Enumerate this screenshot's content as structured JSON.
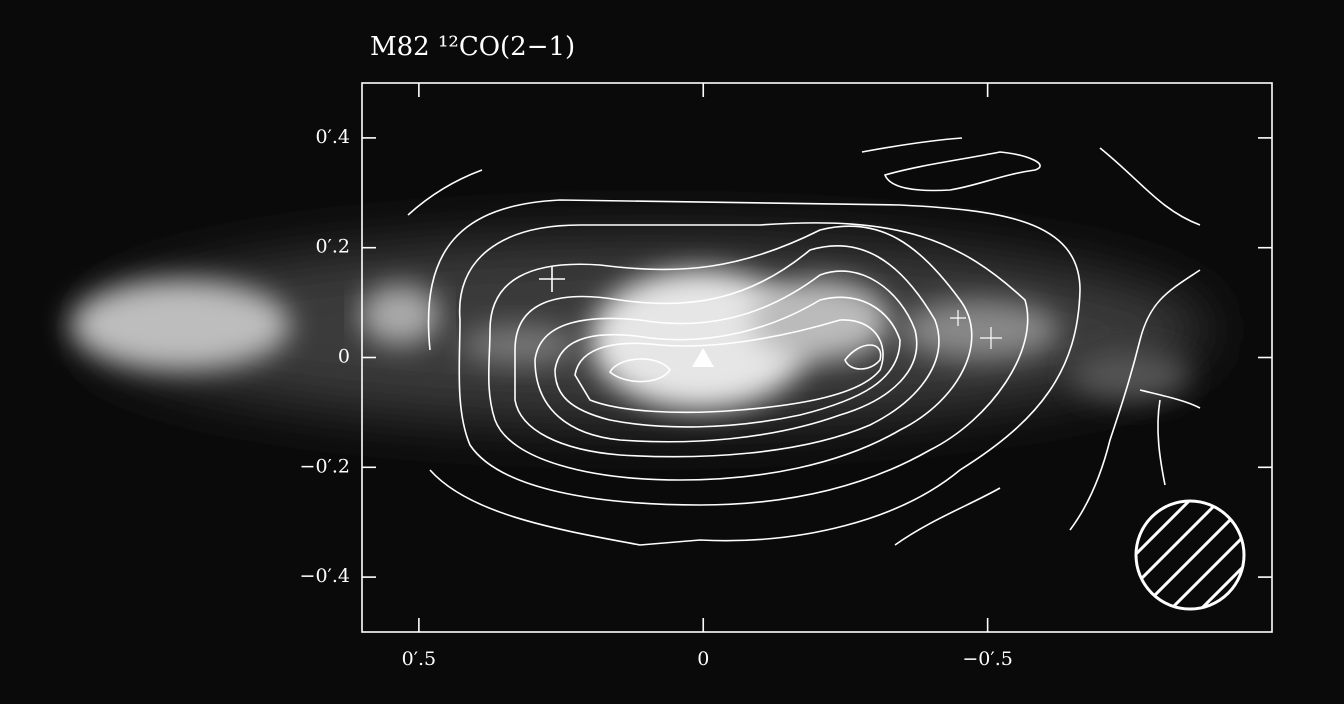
{
  "chart_data": {
    "type": "contour",
    "title": "M82 ¹²CO(2−1)",
    "xlim": [
      0.6,
      -1.0
    ],
    "ylim": [
      -0.5,
      0.5
    ],
    "xticks": [
      {
        "value": 0.5,
        "label": "0′.5"
      },
      0,
      {
        "value": -0.5,
        "label": "−0′.5"
      }
    ],
    "yticks": [
      {
        "value": 0.4,
        "label": "0′.4"
      },
      {
        "value": 0.2,
        "label": "0′.2"
      },
      0,
      {
        "value": -0.2,
        "label": "−0′.2"
      },
      {
        "value": -0.4,
        "label": "−0′.4"
      }
    ]
  }
}
